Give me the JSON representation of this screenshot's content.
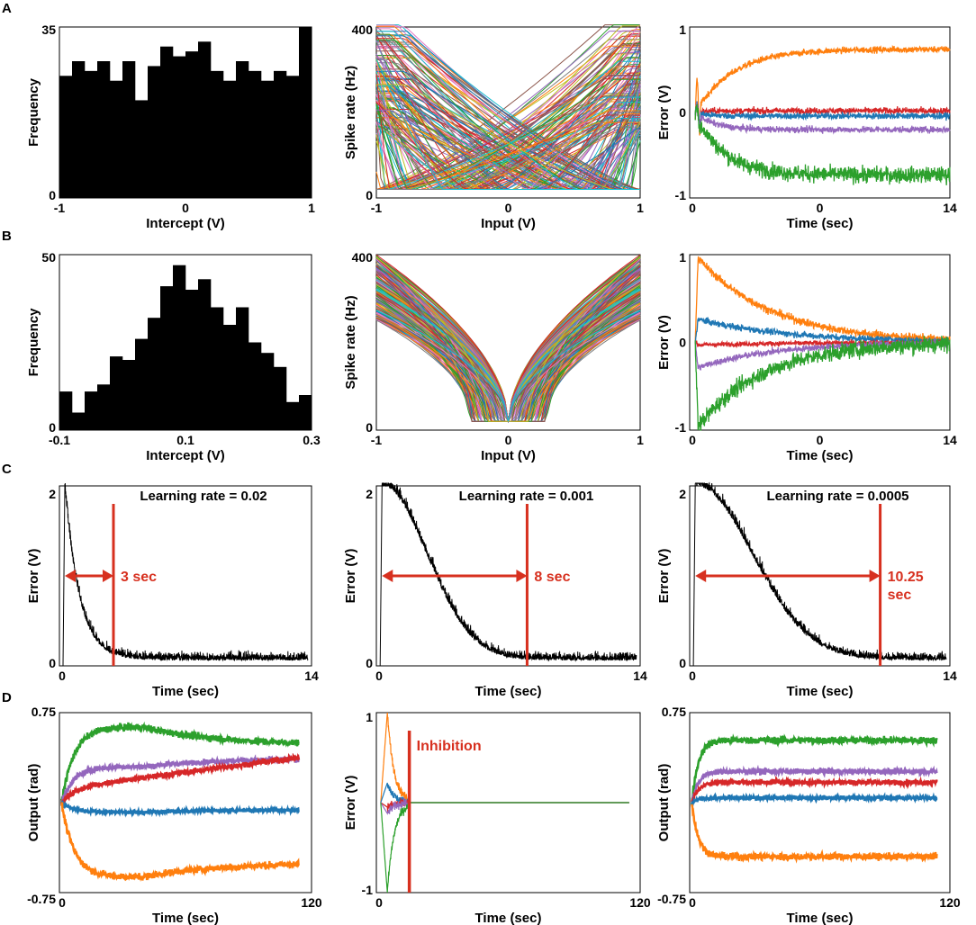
{
  "colors": {
    "blue": "#1f77b4",
    "orange": "#ff7f0e",
    "green": "#2ca02c",
    "red": "#d62728",
    "purple": "#9467bd",
    "black": "#000000",
    "annotation_red": "#d7301f",
    "cyan": "#17becf"
  },
  "panel_labels": [
    "A",
    "B",
    "C",
    "D"
  ],
  "chart_data": [
    {
      "id": "A1",
      "type": "histogram",
      "panel": "A",
      "xlabel": "Intercept (V)",
      "ylabel": "Frequency",
      "xlim": [
        -1,
        1
      ],
      "ylim": [
        0,
        35
      ],
      "xticks": [
        "-1",
        "0",
        "1"
      ],
      "yticks": [
        "0",
        "35"
      ],
      "bins": 20,
      "values": [
        25,
        28,
        26,
        28,
        24,
        28,
        20,
        27,
        31,
        29,
        30,
        32,
        26,
        24,
        28,
        26,
        24,
        26,
        25,
        35
      ]
    },
    {
      "id": "A2",
      "type": "line",
      "panel": "A",
      "xlabel": "Input (V)",
      "ylabel": "Spike rate (Hz)",
      "xlim": [
        -1,
        1
      ],
      "ylim": [
        0,
        400
      ],
      "xticks": [
        "-1",
        "0",
        "1"
      ],
      "yticks": [
        "0",
        "400"
      ],
      "description": "tuning curves of many neurons with uniform intercepts in [-1,1], max rates up to ~400 Hz, random encoders"
    },
    {
      "id": "A3",
      "type": "line",
      "panel": "A",
      "xlabel": "Time (sec)",
      "ylabel": "Error (V)",
      "xlim": [
        0,
        14
      ],
      "ylim": [
        -1,
        1
      ],
      "xticks": [
        "0",
        "0",
        "14"
      ],
      "yticks": [
        "-1",
        "0",
        "1"
      ],
      "series": [
        {
          "name": "orange",
          "start": 0.0,
          "end": 0.74,
          "tau": 2.0,
          "noise": 0.02
        },
        {
          "name": "red",
          "start": 0.0,
          "end": 0.02,
          "tau": 0.6,
          "noise": 0.02
        },
        {
          "name": "blue",
          "start": 0.0,
          "end": -0.04,
          "tau": 0.6,
          "noise": 0.02
        },
        {
          "name": "purple",
          "start": 0.0,
          "end": -0.2,
          "tau": 1.0,
          "noise": 0.02
        },
        {
          "name": "green",
          "start": 0.0,
          "end": -0.73,
          "tau": 1.5,
          "noise": 0.05
        }
      ]
    },
    {
      "id": "B1",
      "type": "histogram",
      "panel": "B",
      "xlabel": "Intercept (V)",
      "ylabel": "Frequency",
      "xlim": [
        -0.1,
        0.3
      ],
      "ylim": [
        0,
        50
      ],
      "xticks": [
        "-0.1",
        "0.1",
        "0.3"
      ],
      "yticks": [
        "0",
        "50"
      ],
      "bins": 20,
      "values": [
        11,
        5,
        11,
        13,
        21,
        20,
        26,
        32,
        41,
        47,
        40,
        43,
        35,
        30,
        35,
        25,
        22,
        18,
        8,
        10
      ]
    },
    {
      "id": "B2",
      "type": "line",
      "panel": "B",
      "xlabel": "Input (V)",
      "ylabel": "Spike rate (Hz)",
      "xlim": [
        -1,
        1
      ],
      "ylim": [
        0,
        400
      ],
      "xticks": [
        "-1",
        "0",
        "1"
      ],
      "yticks": [
        "0",
        "400"
      ],
      "description": "symmetric V-shaped tuning curves with intercepts in [-0.1,0.3], max rates ~250-400 Hz"
    },
    {
      "id": "B3",
      "type": "line",
      "panel": "B",
      "xlabel": "Time (sec)",
      "ylabel": "Error (V)",
      "xlim": [
        0,
        14
      ],
      "ylim": [
        -1,
        1
      ],
      "xticks": [
        "0",
        "0",
        "14"
      ],
      "yticks": [
        "-1",
        "0",
        "1"
      ],
      "series": [
        {
          "name": "orange",
          "start": 1.0,
          "end": 0.0,
          "tau": 4.0,
          "noise": 0.025
        },
        {
          "name": "blue",
          "start": 0.27,
          "end": 0.0,
          "tau": 5.0,
          "noise": 0.02
        },
        {
          "name": "red",
          "start": -0.03,
          "end": 0.0,
          "tau": 5.0,
          "noise": 0.015
        },
        {
          "name": "purple",
          "start": -0.3,
          "end": 0.0,
          "tau": 4.0,
          "noise": 0.02
        },
        {
          "name": "green",
          "start": -1.0,
          "end": 0.0,
          "tau": 3.5,
          "noise": 0.05
        }
      ]
    },
    {
      "id": "C1",
      "type": "line",
      "panel": "C",
      "title": "Learning rate = 0.02",
      "xlabel": "Time (sec)",
      "ylabel": "Error (V)",
      "xlim": [
        0,
        14
      ],
      "ylim": [
        0,
        2
      ],
      "xticks": [
        "0",
        "14"
      ],
      "yticks": [
        "0",
        "2"
      ],
      "marker_time": 3,
      "marker_label": "3 sec",
      "decay_tau": 1.0
    },
    {
      "id": "C2",
      "type": "line",
      "panel": "C",
      "title": "Learning rate = 0.001",
      "xlabel": "Time (sec)",
      "ylabel": "Error (V)",
      "xlim": [
        0,
        14
      ],
      "ylim": [
        0,
        2
      ],
      "xticks": [
        "0",
        "14"
      ],
      "yticks": [
        "0",
        "2"
      ],
      "marker_time": 8,
      "marker_label": "8 sec",
      "decay_tau": 2.8
    },
    {
      "id": "C3",
      "type": "line",
      "panel": "C",
      "title": "Learning rate = 0.0005",
      "xlabel": "Time (sec)",
      "ylabel": "Error (V)",
      "xlim": [
        0,
        14
      ],
      "ylim": [
        0,
        2
      ],
      "xticks": [
        "0",
        "14"
      ],
      "yticks": [
        "0",
        "2"
      ],
      "marker_time": 10.25,
      "marker_label": "10.25\nsec",
      "decay_tau": 3.6
    },
    {
      "id": "D1",
      "type": "line",
      "panel": "D",
      "xlabel": "Time (sec)",
      "ylabel": "Output (rad)",
      "xlim": [
        0,
        120
      ],
      "ylim": [
        -0.75,
        0.75
      ],
      "xticks": [
        "0",
        "120"
      ],
      "yticks": [
        "-0.75",
        "0.75"
      ],
      "series": [
        {
          "name": "green",
          "peak": 0.63,
          "end": 0.48,
          "noise": 0.015
        },
        {
          "name": "purple",
          "peak": 0.3,
          "end": 0.37,
          "noise": 0.012
        },
        {
          "name": "red",
          "peak": 0.12,
          "end": 0.37,
          "noise": 0.012
        },
        {
          "name": "blue",
          "peak": -0.08,
          "end": -0.06,
          "noise": 0.008
        },
        {
          "name": "orange",
          "peak": -0.62,
          "end": -0.5,
          "noise": 0.015
        }
      ]
    },
    {
      "id": "D2",
      "type": "line",
      "panel": "D",
      "annotation": "Inhibition",
      "xlabel": "Time (sec)",
      "ylabel": "Error (V)",
      "xlim": [
        0,
        120
      ],
      "ylim": [
        -1,
        1
      ],
      "xticks": [
        "0",
        "120"
      ],
      "yticks": [
        "-1",
        "1"
      ],
      "inhibition_time": 15,
      "series": [
        {
          "name": "orange",
          "peak": 1.0
        },
        {
          "name": "blue",
          "peak": 0.22
        },
        {
          "name": "red",
          "peak": -0.05
        },
        {
          "name": "purple",
          "peak": -0.12
        },
        {
          "name": "green",
          "peak": -1.0
        }
      ]
    },
    {
      "id": "D3",
      "type": "line",
      "panel": "D",
      "xlabel": "Time (sec)",
      "ylabel": "Output (rad)",
      "xlim": [
        0,
        120
      ],
      "ylim": [
        -0.75,
        0.75
      ],
      "xticks": [
        "0",
        "120"
      ],
      "yticks": [
        "-0.75",
        "0.75"
      ],
      "series": [
        {
          "name": "green",
          "end": 0.52,
          "noise": 0.015
        },
        {
          "name": "purple",
          "end": 0.26,
          "noise": 0.012
        },
        {
          "name": "red",
          "end": 0.17,
          "noise": 0.012
        },
        {
          "name": "blue",
          "end": 0.04,
          "noise": 0.01
        },
        {
          "name": "orange",
          "end": -0.45,
          "noise": 0.015
        }
      ]
    }
  ]
}
